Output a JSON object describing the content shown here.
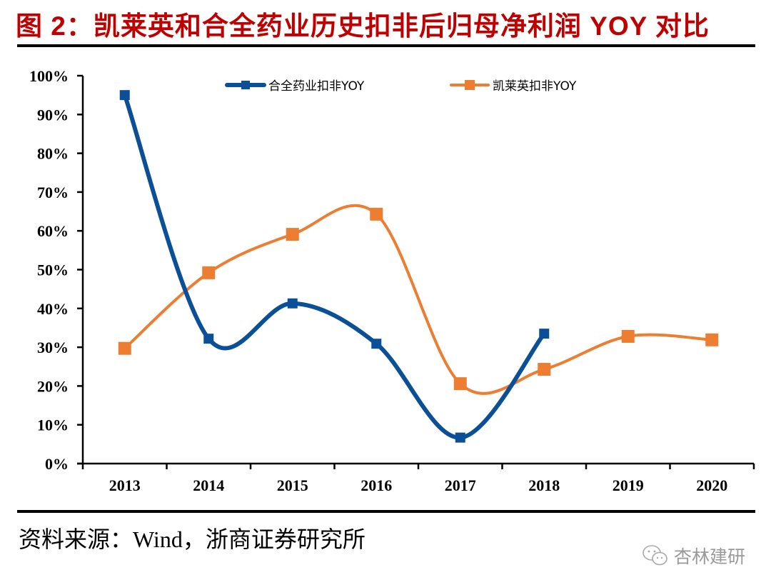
{
  "figure": {
    "title": "图 2：凯莱英和合全药业历史扣非后归母净利润 YOY 对比",
    "source": "资料来源：Wind，浙商证券研究所",
    "watermark": "杏林建研",
    "watermark_icon": "wechat-icon"
  },
  "chart_data": {
    "type": "line",
    "title": "凯莱英和合全药业历史扣非后归母净利润 YOY 对比",
    "xlabel": "",
    "ylabel": "",
    "categories": [
      "2013",
      "2014",
      "2015",
      "2016",
      "2017",
      "2018",
      "2019",
      "2020"
    ],
    "ylim": [
      0,
      100
    ],
    "yticks": [
      0,
      10,
      20,
      30,
      40,
      50,
      60,
      70,
      80,
      90,
      100
    ],
    "ytick_labels": [
      "0%",
      "10%",
      "20%",
      "30%",
      "40%",
      "50%",
      "60%",
      "70%",
      "80%",
      "90%",
      "100%"
    ],
    "y_unit": "%",
    "grid": false,
    "smooth": true,
    "legend_position": "top",
    "series": [
      {
        "name": "合全药业扣非YOY",
        "color": "#0b4f96",
        "marker": "square",
        "values": [
          95.0,
          32.2,
          41.3,
          30.9,
          6.7,
          33.5,
          null,
          null
        ]
      },
      {
        "name": "凯莱英扣非YOY",
        "color": "#ed7d31",
        "marker": "square",
        "values": [
          29.7,
          49.2,
          59.1,
          64.3,
          20.6,
          24.3,
          32.8,
          31.9
        ]
      }
    ]
  }
}
